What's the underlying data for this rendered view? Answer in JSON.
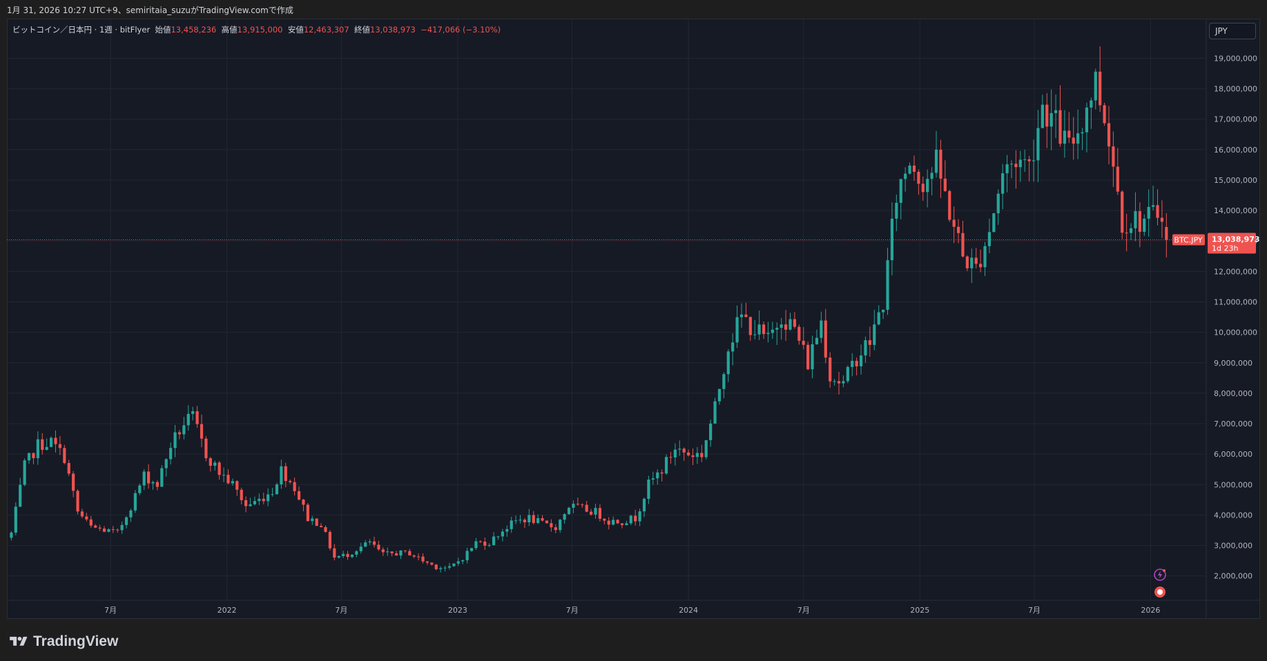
{
  "header": {
    "caption": "1月 31, 2026 10:27 UTC+9、semiritaia_suzuがTradingView.comで作成"
  },
  "legend": {
    "symbol": "ビットコイン／日本円 · 1週 · bitFlyer",
    "open_label": "始値",
    "open": "13,458,236",
    "high_label": "高値",
    "high": "13,915,000",
    "low_label": "安値",
    "low": "12,463,307",
    "close_label": "終値",
    "close": "13,038,973",
    "change": "−417,066 (−3.10%)"
  },
  "currency_button": "JPY",
  "price_badge": {
    "symbol": "BTC.JPY",
    "price": "13,038,973",
    "countdown": "1d 23h"
  },
  "brand": "TradingView",
  "colors": {
    "up": "#26a69a",
    "down": "#ef5350",
    "background": "#161a25",
    "grid": "#232733"
  },
  "chart_data": {
    "type": "candlestick",
    "y_ticks": [
      "2,000,000",
      "3,000,000",
      "4,000,000",
      "5,000,000",
      "6,000,000",
      "7,000,000",
      "8,000,000",
      "9,000,000",
      "10,000,000",
      "11,000,000",
      "12,000,000",
      "13,000,000",
      "14,000,000",
      "15,000,000",
      "16,000,000",
      "17,000,000",
      "18,000,000",
      "19,000,000"
    ],
    "y_tick_values": [
      2000000,
      3000000,
      4000000,
      5000000,
      6000000,
      7000000,
      8000000,
      9000000,
      10000000,
      11000000,
      12000000,
      13000000,
      14000000,
      15000000,
      16000000,
      17000000,
      18000000,
      19000000
    ],
    "x_ticks": [
      {
        "label": "7月",
        "date": "2021-07-01"
      },
      {
        "label": "2022",
        "date": "2022-01-01"
      },
      {
        "label": "7月",
        "date": "2022-07-01"
      },
      {
        "label": "2023",
        "date": "2023-01-01"
      },
      {
        "label": "7月",
        "date": "2023-07-01"
      },
      {
        "label": "2024",
        "date": "2024-01-01"
      },
      {
        "label": "7月",
        "date": "2024-07-01"
      },
      {
        "label": "2025",
        "date": "2025-01-01"
      },
      {
        "label": "7月",
        "date": "2025-07-01"
      },
      {
        "label": "2026",
        "date": "2026-01-01"
      }
    ],
    "ylim": [
      1200000,
      19600000
    ],
    "x_start": "2021-01-18",
    "x_end": "2026-03-30",
    "last_price": 13038973,
    "path": [
      [
        "2021-01-25",
        3400000
      ],
      [
        "2021-02-15",
        5600000
      ],
      [
        "2021-03-08",
        6300000
      ],
      [
        "2021-03-29",
        6400000
      ],
      [
        "2021-04-19",
        5900000
      ],
      [
        "2021-05-10",
        4100000
      ],
      [
        "2021-05-31",
        3600000
      ],
      [
        "2021-06-21",
        3500000
      ],
      [
        "2021-07-12",
        3400000
      ],
      [
        "2021-08-02",
        4300000
      ],
      [
        "2021-08-23",
        5300000
      ],
      [
        "2021-09-13",
        5000000
      ],
      [
        "2021-10-04",
        6300000
      ],
      [
        "2021-10-25",
        7000000
      ],
      [
        "2021-11-08",
        7200000
      ],
      [
        "2021-11-29",
        6000000
      ],
      [
        "2021-12-20",
        5400000
      ],
      [
        "2022-01-10",
        5000000
      ],
      [
        "2022-01-31",
        4300000
      ],
      [
        "2022-02-21",
        4500000
      ],
      [
        "2022-03-14",
        4800000
      ],
      [
        "2022-03-28",
        5500000
      ],
      [
        "2022-04-18",
        4900000
      ],
      [
        "2022-05-09",
        3900000
      ],
      [
        "2022-05-30",
        3700000
      ],
      [
        "2022-06-20",
        2600000
      ],
      [
        "2022-07-11",
        2700000
      ],
      [
        "2022-08-01",
        2950000
      ],
      [
        "2022-08-15",
        3100000
      ],
      [
        "2022-09-05",
        2700000
      ],
      [
        "2022-09-26",
        2750000
      ],
      [
        "2022-10-17",
        2750000
      ],
      [
        "2022-11-07",
        2500000
      ],
      [
        "2022-11-28",
        2300000
      ],
      [
        "2022-12-19",
        2250000
      ],
      [
        "2023-01-09",
        2600000
      ],
      [
        "2023-01-30",
        3100000
      ],
      [
        "2023-02-20",
        3100000
      ],
      [
        "2023-03-13",
        3500000
      ],
      [
        "2023-04-03",
        3800000
      ],
      [
        "2023-04-24",
        3900000
      ],
      [
        "2023-05-15",
        3700000
      ],
      [
        "2023-06-05",
        3600000
      ],
      [
        "2023-06-26",
        4300000
      ],
      [
        "2023-07-17",
        4200000
      ],
      [
        "2023-08-07",
        4100000
      ],
      [
        "2023-08-28",
        3800000
      ],
      [
        "2023-09-18",
        3800000
      ],
      [
        "2023-10-09",
        3900000
      ],
      [
        "2023-10-30",
        5000000
      ],
      [
        "2023-11-20",
        5500000
      ],
      [
        "2023-12-11",
        6200000
      ],
      [
        "2024-01-01",
        6000000
      ],
      [
        "2024-01-22",
        6000000
      ],
      [
        "2024-02-12",
        7500000
      ],
      [
        "2024-03-04",
        9600000
      ],
      [
        "2024-03-25",
        10500000
      ],
      [
        "2024-04-15",
        10100000
      ],
      [
        "2024-05-06",
        9700000
      ],
      [
        "2024-05-27",
        10600000
      ],
      [
        "2024-06-17",
        10100000
      ],
      [
        "2024-07-08",
        9000000
      ],
      [
        "2024-07-29",
        10400000
      ],
      [
        "2024-08-12",
        8600000
      ],
      [
        "2024-09-02",
        8300000
      ],
      [
        "2024-09-23",
        9200000
      ],
      [
        "2024-10-14",
        9700000
      ],
      [
        "2024-11-04",
        11000000
      ],
      [
        "2024-11-25",
        14500000
      ],
      [
        "2024-12-16",
        15700000
      ],
      [
        "2025-01-06",
        15000000
      ],
      [
        "2025-01-27",
        15500000
      ],
      [
        "2025-02-17",
        14000000
      ],
      [
        "2025-03-10",
        12500000
      ],
      [
        "2025-03-31",
        12100000
      ],
      [
        "2025-04-21",
        13400000
      ],
      [
        "2025-05-12",
        15200000
      ],
      [
        "2025-06-02",
        15700000
      ],
      [
        "2025-06-23",
        15500000
      ],
      [
        "2025-07-14",
        17500000
      ],
      [
        "2025-08-04",
        16800000
      ],
      [
        "2025-08-25",
        16000000
      ],
      [
        "2025-09-15",
        17000000
      ],
      [
        "2025-10-06",
        18300000
      ],
      [
        "2025-10-27",
        16500000
      ],
      [
        "2025-11-17",
        13700000
      ],
      [
        "2025-12-08",
        13700000
      ],
      [
        "2025-12-29",
        13700000
      ],
      [
        "2026-01-19",
        14100000
      ],
      [
        "2026-01-26",
        13039000
      ]
    ]
  }
}
